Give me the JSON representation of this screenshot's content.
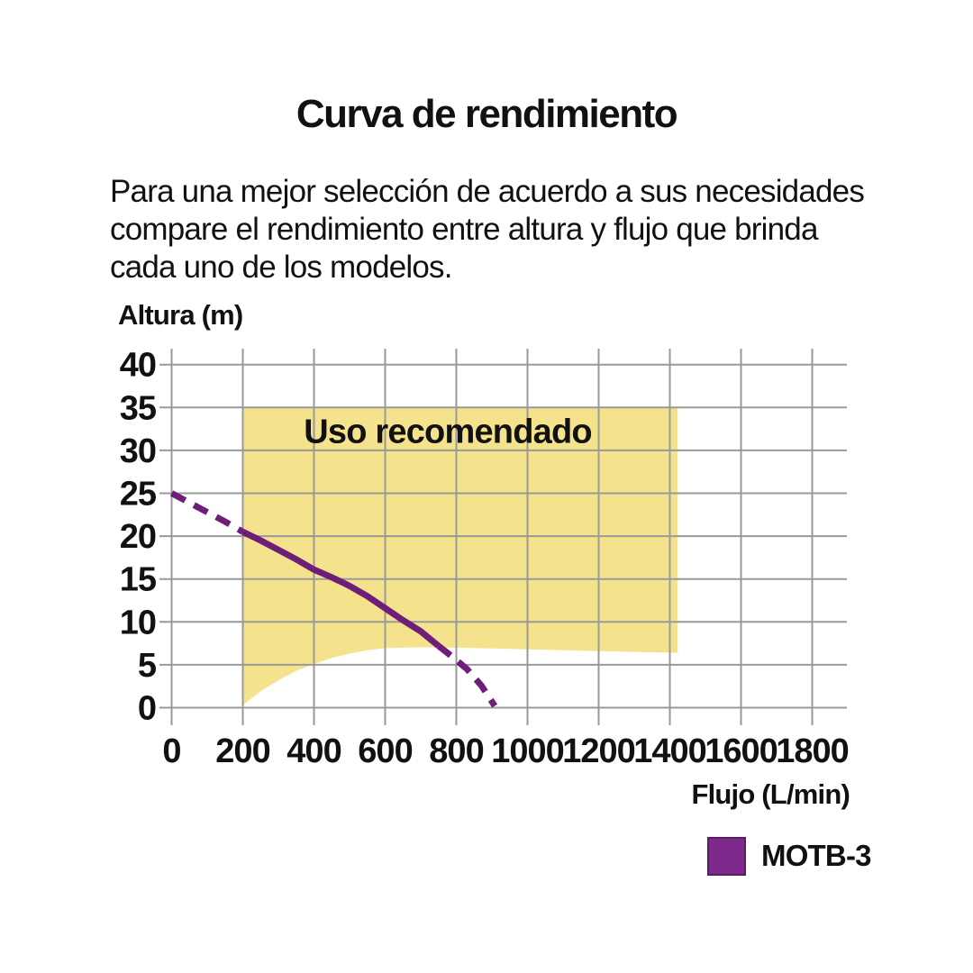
{
  "page": {
    "title": "Curva de rendimiento",
    "intro_lines": [
      "Para una mejor selección de acuerdo a sus necesidades",
      "compare el rendimiento entre altura y flujo que brinda",
      "cada uno de los modelos."
    ]
  },
  "chart_data": {
    "type": "line",
    "title": "Curva de rendimiento",
    "xlabel": "Flujo (L/min)",
    "ylabel": "Altura (m)",
    "x_ticks": [
      0,
      200,
      400,
      600,
      800,
      1000,
      1200,
      1400,
      1600,
      1800
    ],
    "y_ticks": [
      0,
      5,
      10,
      15,
      20,
      25,
      30,
      35,
      40
    ],
    "xlim": [
      0,
      1900
    ],
    "ylim": [
      0,
      42
    ],
    "grid": true,
    "colors": {
      "region_fill": "#f5e28d",
      "curve": "#6e1e78",
      "grid": "#999999",
      "text": "#111111",
      "legend_swatch": "#7d2a8c"
    },
    "annotation_text": "Uso recomendado",
    "annotation_xy": [
      776,
      30.9
    ],
    "recommended_region": {
      "x_min": 200,
      "x_max": 1422,
      "y_top": 35,
      "bottom_boundary": [
        [
          200,
          0.3
        ],
        [
          250,
          1.9
        ],
        [
          300,
          3.2
        ],
        [
          350,
          4.3
        ],
        [
          400,
          5.1
        ],
        [
          450,
          5.8
        ],
        [
          500,
          6.3
        ],
        [
          550,
          6.7
        ],
        [
          600,
          6.95
        ],
        [
          700,
          7.05
        ],
        [
          800,
          7.0
        ],
        [
          900,
          6.9
        ],
        [
          1000,
          6.8
        ],
        [
          1100,
          6.7
        ],
        [
          1200,
          6.6
        ],
        [
          1300,
          6.5
        ],
        [
          1422,
          6.4
        ]
      ]
    },
    "series": [
      {
        "name": "MOTB-3",
        "color": "#6e1e78",
        "segments": [
          {
            "style": "dashed",
            "points": [
              [
                0,
                25.0
              ],
              [
                50,
                23.9
              ],
              [
                100,
                22.8
              ],
              [
                150,
                21.7
              ],
              [
                200,
                20.5
              ]
            ]
          },
          {
            "style": "solid",
            "points": [
              [
                200,
                20.5
              ],
              [
                250,
                19.5
              ],
              [
                300,
                18.4
              ],
              [
                350,
                17.3
              ],
              [
                400,
                16.1
              ],
              [
                450,
                15.2
              ],
              [
                500,
                14.2
              ],
              [
                550,
                13.0
              ],
              [
                600,
                11.6
              ],
              [
                650,
                10.2
              ],
              [
                700,
                8.9
              ],
              [
                750,
                7.2
              ]
            ]
          },
          {
            "style": "dashed",
            "points": [
              [
                750,
                7.2
              ],
              [
                790,
                5.9
              ],
              [
                830,
                4.5
              ],
              [
                870,
                2.6
              ],
              [
                908,
                0.2
              ]
            ]
          }
        ]
      }
    ],
    "legend": [
      {
        "label": "MOTB-3",
        "color": "#7d2a8c"
      }
    ]
  }
}
